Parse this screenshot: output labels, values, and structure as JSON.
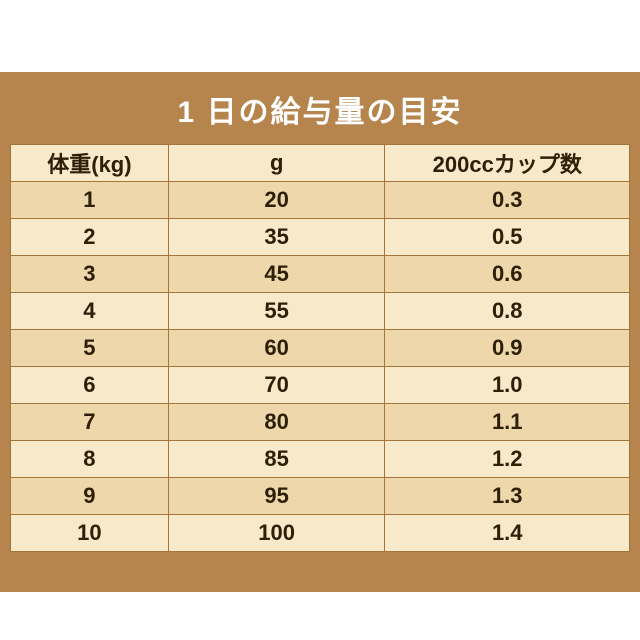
{
  "title": "1 日の給与量の目安",
  "chart_data": {
    "type": "table",
    "title": "1 日の給与量の目安",
    "columns": [
      "体重(kg)",
      "g",
      "200ccカップ数"
    ],
    "rows": [
      [
        "1",
        "20",
        "0.3"
      ],
      [
        "2",
        "35",
        "0.5"
      ],
      [
        "3",
        "45",
        "0.6"
      ],
      [
        "4",
        "55",
        "0.8"
      ],
      [
        "5",
        "60",
        "0.9"
      ],
      [
        "6",
        "70",
        "1.0"
      ],
      [
        "7",
        "80",
        "1.1"
      ],
      [
        "8",
        "85",
        "1.2"
      ],
      [
        "9",
        "95",
        "1.3"
      ],
      [
        "10",
        "100",
        "1.4"
      ]
    ]
  },
  "colors": {
    "panel": "#b5854d",
    "border": "#a4763c",
    "header_bg": "#f7e9c9",
    "row_dark": "#eed8ab",
    "row_light": "#f7e9c9",
    "text": "#2e2008",
    "title_text": "#ffffff"
  }
}
